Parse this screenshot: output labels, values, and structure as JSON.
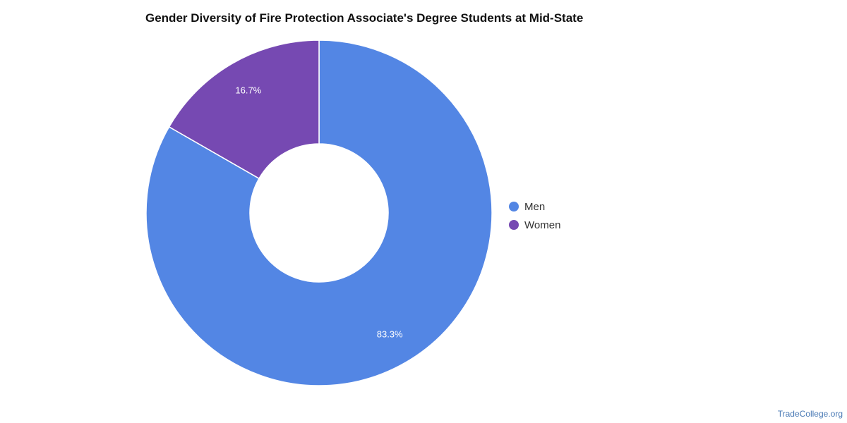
{
  "chart_data": {
    "type": "pie",
    "title": "Gender Diversity of Fire Protection Associate's Degree Students at Mid-State",
    "categories": [
      "Men",
      "Women"
    ],
    "values": [
      83.3,
      16.7
    ],
    "labels": [
      "83.3%",
      "16.7%"
    ],
    "colors": [
      "#5386e4",
      "#7649b2"
    ],
    "donut": true,
    "legend_placement": "right"
  },
  "watermark": "TradeCollege.org"
}
